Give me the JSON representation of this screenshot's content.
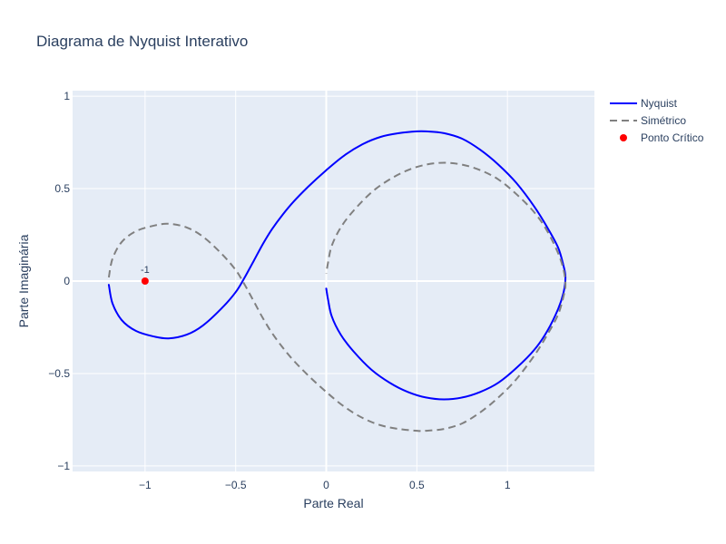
{
  "chart_data": {
    "type": "line",
    "title": "Diagrama de Nyquist Interativo",
    "xlabel": "Parte Real",
    "ylabel": "Parte Imaginária",
    "xlim": [
      -1.4,
      1.48
    ],
    "ylim": [
      -1.03,
      1.03
    ],
    "xticks": [
      -1,
      -0.5,
      0,
      0.5,
      1
    ],
    "xtick_labels": [
      "−1",
      "−0.5",
      "0",
      "0.5",
      "1"
    ],
    "yticks": [
      -1,
      -0.5,
      0,
      0.5,
      1
    ],
    "ytick_labels": [
      "−1",
      "−0.5",
      "0",
      "0.5",
      "1"
    ],
    "grid": true,
    "legend_position": "top-right",
    "series": [
      {
        "name": "Nyquist",
        "style": "solid",
        "color": "#0000ff",
        "x": [
          -1.2,
          -1.18,
          -1.13,
          -1.05,
          -0.95,
          -0.87,
          -0.77,
          -0.68,
          -0.58,
          -0.5,
          -0.45,
          -0.4,
          -0.35,
          -0.3,
          -0.24,
          -0.18,
          -0.1,
          0.0,
          0.1,
          0.2,
          0.3,
          0.4,
          0.5,
          0.55,
          0.65,
          0.75,
          0.85,
          0.95,
          1.05,
          1.15,
          1.22,
          1.28,
          1.31,
          1.32,
          1.31,
          1.28,
          1.22,
          1.15,
          1.05,
          0.95,
          0.85,
          0.75,
          0.65,
          0.55,
          0.45,
          0.35,
          0.25,
          0.15,
          0.08,
          0.03,
          0.01,
          0.0
        ],
        "y": [
          -0.02,
          -0.12,
          -0.21,
          -0.27,
          -0.3,
          -0.31,
          -0.29,
          -0.24,
          -0.15,
          -0.06,
          0.02,
          0.11,
          0.2,
          0.28,
          0.36,
          0.43,
          0.51,
          0.6,
          0.68,
          0.74,
          0.78,
          0.8,
          0.81,
          0.81,
          0.8,
          0.77,
          0.71,
          0.63,
          0.53,
          0.4,
          0.29,
          0.18,
          0.08,
          0.02,
          -0.06,
          -0.15,
          -0.27,
          -0.37,
          -0.47,
          -0.55,
          -0.6,
          -0.63,
          -0.64,
          -0.63,
          -0.6,
          -0.55,
          -0.48,
          -0.38,
          -0.29,
          -0.19,
          -0.1,
          -0.04
        ]
      },
      {
        "name": "Simétrico",
        "style": "dash",
        "color": "#808080",
        "x": [
          -1.2,
          -1.18,
          -1.13,
          -1.05,
          -0.95,
          -0.87,
          -0.77,
          -0.68,
          -0.58,
          -0.5,
          -0.45,
          -0.4,
          -0.35,
          -0.3,
          -0.24,
          -0.18,
          -0.1,
          0.0,
          0.1,
          0.2,
          0.3,
          0.4,
          0.5,
          0.55,
          0.65,
          0.75,
          0.85,
          0.95,
          1.05,
          1.15,
          1.22,
          1.28,
          1.31,
          1.32,
          1.31,
          1.28,
          1.22,
          1.15,
          1.05,
          0.95,
          0.85,
          0.75,
          0.65,
          0.55,
          0.45,
          0.35,
          0.25,
          0.15,
          0.08,
          0.03,
          0.01,
          0.0
        ],
        "y": [
          0.02,
          0.12,
          0.21,
          0.27,
          0.3,
          0.31,
          0.29,
          0.24,
          0.15,
          0.06,
          -0.02,
          -0.11,
          -0.2,
          -0.28,
          -0.36,
          -0.43,
          -0.51,
          -0.6,
          -0.68,
          -0.74,
          -0.78,
          -0.8,
          -0.81,
          -0.81,
          -0.8,
          -0.77,
          -0.71,
          -0.63,
          -0.53,
          -0.4,
          -0.29,
          -0.18,
          -0.08,
          -0.02,
          0.06,
          0.15,
          0.27,
          0.37,
          0.47,
          0.55,
          0.6,
          0.63,
          0.64,
          0.63,
          0.6,
          0.55,
          0.48,
          0.38,
          0.29,
          0.19,
          0.1,
          0.04
        ]
      },
      {
        "name": "Ponto Crítico",
        "style": "marker",
        "color": "#ff0000",
        "x": [
          -1
        ],
        "y": [
          0
        ],
        "label": "-1"
      }
    ]
  }
}
